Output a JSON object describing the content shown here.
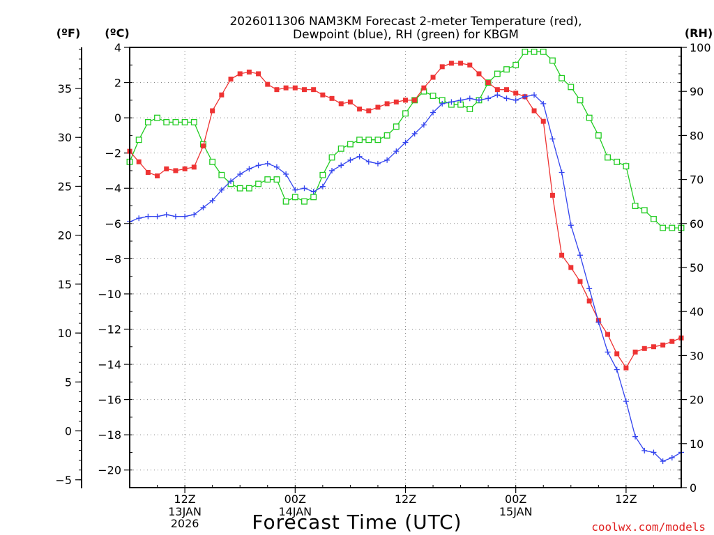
{
  "chart_data": {
    "type": "line",
    "title_line1": "2026011306 NAM3KM Forecast 2-meter Temperature (red),",
    "title_line2": "Dewpoint (blue), RH (green) for KBGM",
    "xlabel": "Forecast Time (UTC)",
    "credit": "coolwx.com/models",
    "unit_f": "(ºF)",
    "unit_c": "(ºC)",
    "unit_rh": "(RH)",
    "x_range_hours": [
      0,
      60
    ],
    "celsius_range": [
      -21,
      4
    ],
    "rh_range": [
      0,
      100
    ],
    "x_ticks": [
      {
        "hour": 6,
        "line1": "12Z",
        "line2": "13JAN",
        "line3": "2026"
      },
      {
        "hour": 18,
        "line1": "00Z",
        "line2": "14JAN",
        "line3": ""
      },
      {
        "hour": 30,
        "line1": "12Z",
        "line2": "",
        "line3": ""
      },
      {
        "hour": 42,
        "line1": "00Z",
        "line2": "15JAN",
        "line3": ""
      },
      {
        "hour": 54,
        "line1": "12Z",
        "line2": "",
        "line3": ""
      }
    ],
    "celsius_ticks": [
      "4",
      "2",
      "0",
      "−2",
      "−4",
      "−6",
      "−8",
      "−10",
      "−12",
      "−14",
      "−16",
      "−18",
      "−20"
    ],
    "fahrenheit_ticks": [
      "35",
      "30",
      "25",
      "20",
      "15",
      "10",
      "5",
      "0",
      "−5"
    ],
    "rh_ticks": [
      "100",
      "90",
      "80",
      "70",
      "60",
      "50",
      "40",
      "30",
      "20",
      "10",
      "0"
    ],
    "series": [
      {
        "name": "Temperature",
        "unit": "°C",
        "axis": "celsius",
        "color": "#ee3333",
        "marker": "filled-square",
        "x": [
          0,
          1,
          2,
          3,
          4,
          5,
          6,
          7,
          8,
          9,
          10,
          11,
          12,
          13,
          14,
          15,
          16,
          17,
          18,
          19,
          20,
          21,
          22,
          23,
          24,
          25,
          26,
          27,
          28,
          29,
          30,
          31,
          32,
          33,
          34,
          35,
          36,
          37,
          38,
          39,
          40,
          41,
          42,
          43,
          44,
          45,
          46,
          47,
          48,
          49,
          50,
          51,
          52,
          53,
          54,
          55,
          56,
          57,
          58,
          59,
          60
        ],
        "values": [
          -1.9,
          -2.5,
          -3.1,
          -3.3,
          -2.9,
          -3.0,
          -2.9,
          -2.8,
          -1.6,
          0.4,
          1.3,
          2.2,
          2.5,
          2.6,
          2.5,
          1.9,
          1.6,
          1.7,
          1.7,
          1.6,
          1.6,
          1.3,
          1.1,
          0.8,
          0.9,
          0.5,
          0.4,
          0.6,
          0.8,
          0.9,
          1.0,
          1.0,
          1.7,
          2.3,
          2.9,
          3.1,
          3.1,
          3.0,
          2.5,
          2.0,
          1.6,
          1.6,
          1.4,
          1.2,
          0.4,
          -0.2,
          -4.4,
          -7.8,
          -8.5,
          -9.3,
          -10.4,
          -11.5,
          -12.3,
          -13.4,
          -14.2,
          -13.3,
          -13.1,
          -13.0,
          -12.9,
          -12.7,
          -12.5
        ]
      },
      {
        "name": "Dewpoint",
        "unit": "°C",
        "axis": "celsius",
        "color": "#3344ee",
        "marker": "plus",
        "x": [
          0,
          1,
          2,
          3,
          4,
          5,
          6,
          7,
          8,
          9,
          10,
          11,
          12,
          13,
          14,
          15,
          16,
          17,
          18,
          19,
          20,
          21,
          22,
          23,
          24,
          25,
          26,
          27,
          28,
          29,
          30,
          31,
          32,
          33,
          34,
          35,
          36,
          37,
          38,
          39,
          40,
          41,
          42,
          43,
          44,
          45,
          46,
          47,
          48,
          49,
          50,
          51,
          52,
          53,
          54,
          55,
          56,
          57,
          58,
          59,
          60
        ],
        "values": [
          -5.9,
          -5.7,
          -5.6,
          -5.6,
          -5.5,
          -5.6,
          -5.6,
          -5.5,
          -5.1,
          -4.7,
          -4.1,
          -3.6,
          -3.2,
          -2.9,
          -2.7,
          -2.6,
          -2.8,
          -3.2,
          -4.1,
          -4.0,
          -4.2,
          -3.9,
          -3.0,
          -2.7,
          -2.4,
          -2.2,
          -2.5,
          -2.6,
          -2.4,
          -1.9,
          -1.4,
          -0.9,
          -0.4,
          0.3,
          0.8,
          0.9,
          1.0,
          1.1,
          1.0,
          1.1,
          1.3,
          1.1,
          1.0,
          1.2,
          1.3,
          0.8,
          -1.2,
          -3.1,
          -6.1,
          -7.8,
          -9.7,
          -11.6,
          -13.3,
          -14.3,
          -16.1,
          -18.1,
          -18.9,
          -19.0,
          -19.5,
          -19.3,
          -19.0
        ]
      },
      {
        "name": "Relative Humidity",
        "unit": "%",
        "axis": "rh",
        "color": "#22cc22",
        "marker": "open-square",
        "x": [
          0,
          1,
          2,
          3,
          4,
          5,
          6,
          7,
          8,
          9,
          10,
          11,
          12,
          13,
          14,
          15,
          16,
          17,
          18,
          19,
          20,
          21,
          22,
          23,
          24,
          25,
          26,
          27,
          28,
          29,
          30,
          31,
          32,
          33,
          34,
          35,
          36,
          37,
          38,
          39,
          40,
          41,
          42,
          43,
          44,
          45,
          46,
          47,
          48,
          49,
          50,
          51,
          52,
          53,
          54,
          55,
          56,
          57,
          58,
          59,
          60
        ],
        "values": [
          74,
          79,
          83,
          84,
          83,
          83,
          83,
          83,
          78,
          74,
          71,
          69,
          68,
          68,
          69,
          70,
          70,
          65,
          66,
          65,
          66,
          71,
          75,
          77,
          78,
          79,
          79,
          79,
          80,
          82,
          85,
          88,
          90,
          89,
          88,
          87,
          87,
          86,
          88,
          92,
          94,
          95,
          96,
          99,
          99,
          99,
          97,
          93,
          91,
          88,
          84,
          80,
          75,
          74,
          73,
          64,
          63,
          61,
          59,
          59,
          59
        ]
      }
    ]
  }
}
